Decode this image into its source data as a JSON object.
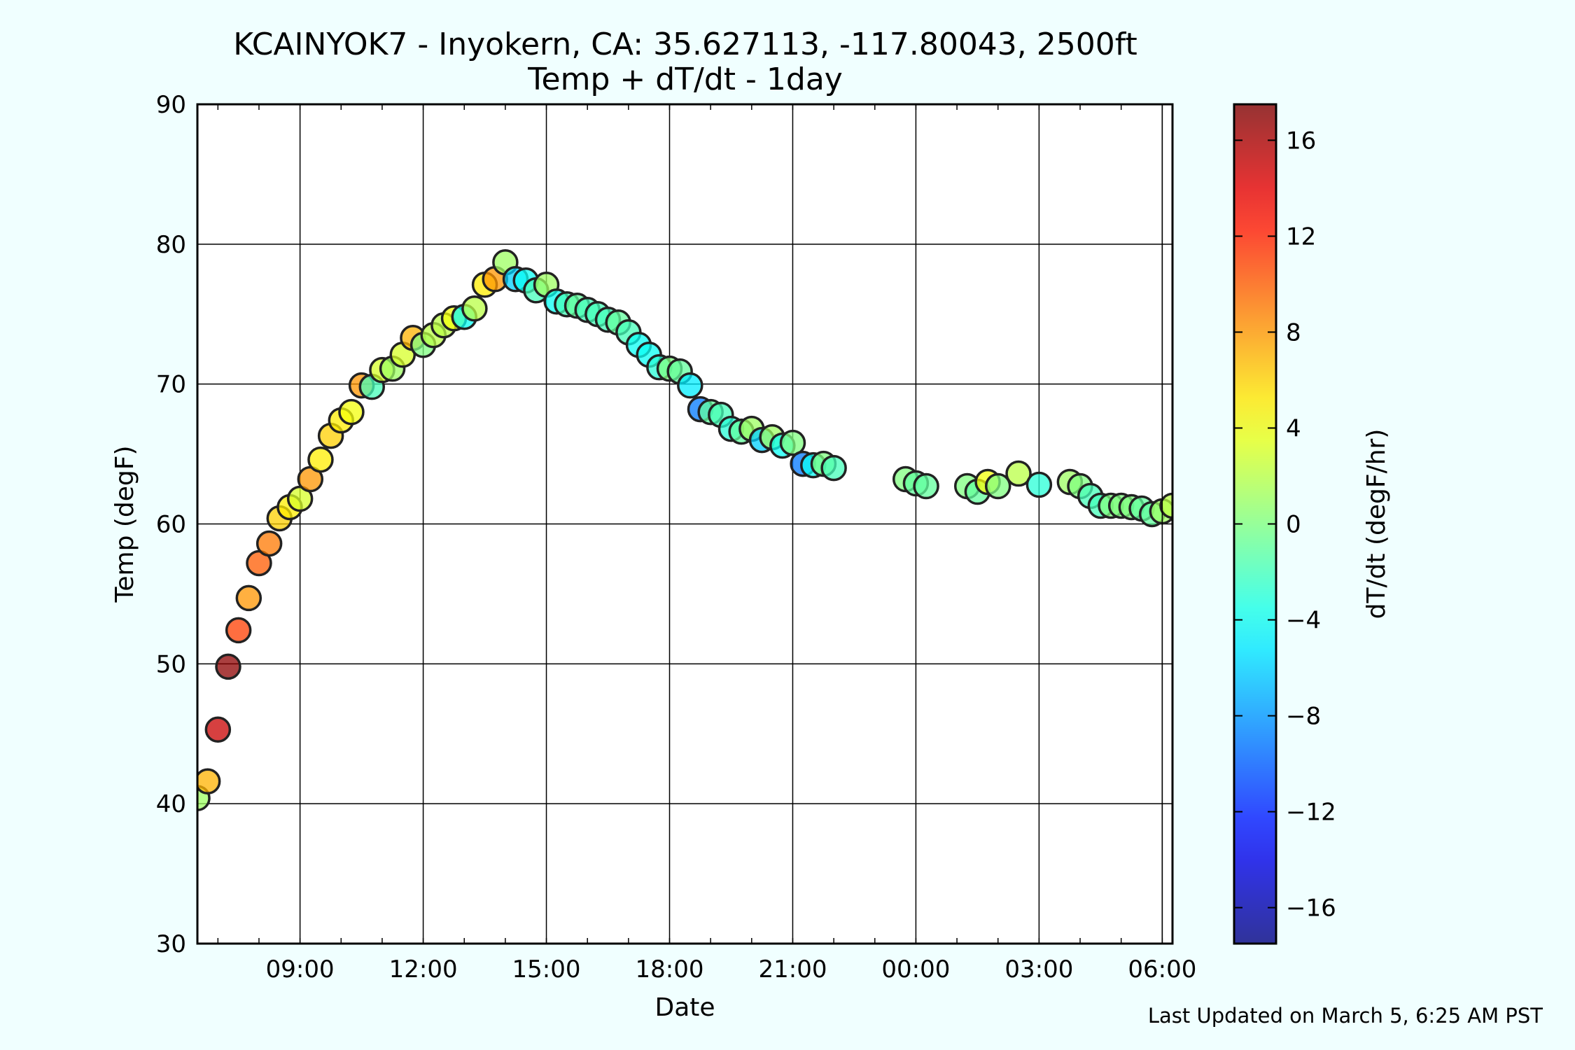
{
  "chart_data": {
    "type": "scatter",
    "title": "KCAINYOK7 - Inyokern, CA: 35.627113, -117.80043, 2500ft",
    "subtitle": "Temp + dT/dt - 1day",
    "xlabel": "Date",
    "ylabel": "Temp (degF)",
    "ylim": [
      30,
      90
    ],
    "yticks": [
      30,
      40,
      50,
      60,
      70,
      80,
      90
    ],
    "xlim_hours": [
      6.5,
      30.25
    ],
    "xticks": [
      {
        "hour": 9,
        "label": "09:00"
      },
      {
        "hour": 12,
        "label": "12:00"
      },
      {
        "hour": 15,
        "label": "15:00"
      },
      {
        "hour": 18,
        "label": "18:00"
      },
      {
        "hour": 21,
        "label": "21:00"
      },
      {
        "hour": 24,
        "label": "00:00"
      },
      {
        "hour": 27,
        "label": "03:00"
      },
      {
        "hour": 30,
        "label": "06:00"
      }
    ],
    "x_extra_vline_hour": 30.0,
    "colorbar": {
      "label": "dT/dt (degF/hr)",
      "range": [
        -17.5,
        17.5
      ],
      "ticks": [
        -16,
        -12,
        -8,
        -4,
        0,
        4,
        8,
        12,
        16
      ],
      "tick_labels": [
        "−16",
        "−12",
        "−8",
        "−4",
        "0",
        "4",
        "8",
        "12",
        "16"
      ],
      "colormap": "jet"
    },
    "grid": true,
    "points": [
      {
        "t": "06:30",
        "temp": 40.4,
        "dtdt": 1
      },
      {
        "t": "06:45",
        "temp": 41.6,
        "dtdt": 7
      },
      {
        "t": "07:00",
        "temp": 45.3,
        "dtdt": 15
      },
      {
        "t": "07:15",
        "temp": 49.8,
        "dtdt": 17
      },
      {
        "t": "07:30",
        "temp": 52.4,
        "dtdt": 11
      },
      {
        "t": "07:45",
        "temp": 54.7,
        "dtdt": 8
      },
      {
        "t": "08:00",
        "temp": 57.2,
        "dtdt": 10
      },
      {
        "t": "08:15",
        "temp": 58.6,
        "dtdt": 9
      },
      {
        "t": "08:30",
        "temp": 60.4,
        "dtdt": 6
      },
      {
        "t": "08:45",
        "temp": 61.2,
        "dtdt": 5
      },
      {
        "t": "09:00",
        "temp": 61.8,
        "dtdt": 3
      },
      {
        "t": "09:15",
        "temp": 63.2,
        "dtdt": 8
      },
      {
        "t": "09:30",
        "temp": 64.6,
        "dtdt": 5
      },
      {
        "t": "09:45",
        "temp": 66.3,
        "dtdt": 6
      },
      {
        "t": "10:00",
        "temp": 67.4,
        "dtdt": 5
      },
      {
        "t": "10:15",
        "temp": 68.0,
        "dtdt": 4
      },
      {
        "t": "10:30",
        "temp": 69.9,
        "dtdt": 8
      },
      {
        "t": "10:45",
        "temp": 69.8,
        "dtdt": -2
      },
      {
        "t": "11:00",
        "temp": 71.0,
        "dtdt": 3
      },
      {
        "t": "11:15",
        "temp": 71.1,
        "dtdt": 1
      },
      {
        "t": "11:30",
        "temp": 72.1,
        "dtdt": 3
      },
      {
        "t": "11:45",
        "temp": 73.3,
        "dtdt": 7
      },
      {
        "t": "12:00",
        "temp": 72.8,
        "dtdt": 0
      },
      {
        "t": "12:15",
        "temp": 73.5,
        "dtdt": 2
      },
      {
        "t": "12:30",
        "temp": 74.2,
        "dtdt": 2
      },
      {
        "t": "12:45",
        "temp": 74.7,
        "dtdt": 4
      },
      {
        "t": "13:00",
        "temp": 74.8,
        "dtdt": -4
      },
      {
        "t": "13:15",
        "temp": 75.4,
        "dtdt": 2
      },
      {
        "t": "13:30",
        "temp": 77.1,
        "dtdt": 5
      },
      {
        "t": "13:45",
        "temp": 77.5,
        "dtdt": 8
      },
      {
        "t": "14:00",
        "temp": 78.7,
        "dtdt": 1
      },
      {
        "t": "14:15",
        "temp": 77.5,
        "dtdt": -6
      },
      {
        "t": "14:30",
        "temp": 77.4,
        "dtdt": -4
      },
      {
        "t": "14:45",
        "temp": 76.7,
        "dtdt": -2
      },
      {
        "t": "15:00",
        "temp": 77.1,
        "dtdt": 1
      },
      {
        "t": "15:15",
        "temp": 75.9,
        "dtdt": -4
      },
      {
        "t": "15:30",
        "temp": 75.7,
        "dtdt": -2
      },
      {
        "t": "15:45",
        "temp": 75.6,
        "dtdt": -1
      },
      {
        "t": "16:00",
        "temp": 75.3,
        "dtdt": -2
      },
      {
        "t": "16:15",
        "temp": 75.0,
        "dtdt": -2
      },
      {
        "t": "16:30",
        "temp": 74.6,
        "dtdt": -2
      },
      {
        "t": "16:45",
        "temp": 74.4,
        "dtdt": -1
      },
      {
        "t": "17:00",
        "temp": 73.7,
        "dtdt": -2
      },
      {
        "t": "17:15",
        "temp": 72.8,
        "dtdt": -4
      },
      {
        "t": "17:30",
        "temp": 72.1,
        "dtdt": -4
      },
      {
        "t": "17:45",
        "temp": 71.2,
        "dtdt": -3
      },
      {
        "t": "18:00",
        "temp": 71.1,
        "dtdt": 0
      },
      {
        "t": "18:15",
        "temp": 70.9,
        "dtdt": -1
      },
      {
        "t": "18:30",
        "temp": 69.9,
        "dtdt": -5
      },
      {
        "t": "18:45",
        "temp": 68.2,
        "dtdt": -9
      },
      {
        "t": "19:00",
        "temp": 68.0,
        "dtdt": -1
      },
      {
        "t": "19:15",
        "temp": 67.8,
        "dtdt": -2
      },
      {
        "t": "19:30",
        "temp": 66.8,
        "dtdt": -3
      },
      {
        "t": "19:45",
        "temp": 66.6,
        "dtdt": -1
      },
      {
        "t": "20:00",
        "temp": 66.8,
        "dtdt": 1
      },
      {
        "t": "20:15",
        "temp": 66.0,
        "dtdt": -6
      },
      {
        "t": "20:30",
        "temp": 66.2,
        "dtdt": 1
      },
      {
        "t": "20:45",
        "temp": 65.6,
        "dtdt": -4
      },
      {
        "t": "21:00",
        "temp": 65.8,
        "dtdt": 0
      },
      {
        "t": "21:15",
        "temp": 64.3,
        "dtdt": -9
      },
      {
        "t": "21:30",
        "temp": 64.2,
        "dtdt": -4
      },
      {
        "t": "21:45",
        "temp": 64.3,
        "dtdt": 0
      },
      {
        "t": "22:00",
        "temp": 64.0,
        "dtdt": -2
      },
      {
        "t": "23:45",
        "temp": 63.2,
        "dtdt": 0
      },
      {
        "t": "00:00",
        "temp": 62.9,
        "dtdt": -1
      },
      {
        "t": "00:15",
        "temp": 62.7,
        "dtdt": -1
      },
      {
        "t": "01:15",
        "temp": 62.7,
        "dtdt": 0
      },
      {
        "t": "01:30",
        "temp": 62.3,
        "dtdt": -1
      },
      {
        "t": "01:45",
        "temp": 63.0,
        "dtdt": 4
      },
      {
        "t": "02:00",
        "temp": 62.7,
        "dtdt": 0
      },
      {
        "t": "02:30",
        "temp": 63.6,
        "dtdt": 2
      },
      {
        "t": "03:00",
        "temp": 62.8,
        "dtdt": -3
      },
      {
        "t": "03:45",
        "temp": 63.0,
        "dtdt": 1
      },
      {
        "t": "04:00",
        "temp": 62.7,
        "dtdt": 0
      },
      {
        "t": "04:15",
        "temp": 62.0,
        "dtdt": -2
      },
      {
        "t": "04:30",
        "temp": 61.3,
        "dtdt": -2
      },
      {
        "t": "04:45",
        "temp": 61.3,
        "dtdt": 0
      },
      {
        "t": "05:00",
        "temp": 61.3,
        "dtdt": 0
      },
      {
        "t": "05:15",
        "temp": 61.2,
        "dtdt": 0
      },
      {
        "t": "05:30",
        "temp": 61.1,
        "dtdt": -1
      },
      {
        "t": "05:45",
        "temp": 60.7,
        "dtdt": -1
      },
      {
        "t": "06:00",
        "temp": 60.9,
        "dtdt": 1
      },
      {
        "t": "06:15",
        "temp": 61.3,
        "dtdt": 2
      }
    ]
  },
  "footer": "Last Updated on March 5, 6:25 AM PST"
}
